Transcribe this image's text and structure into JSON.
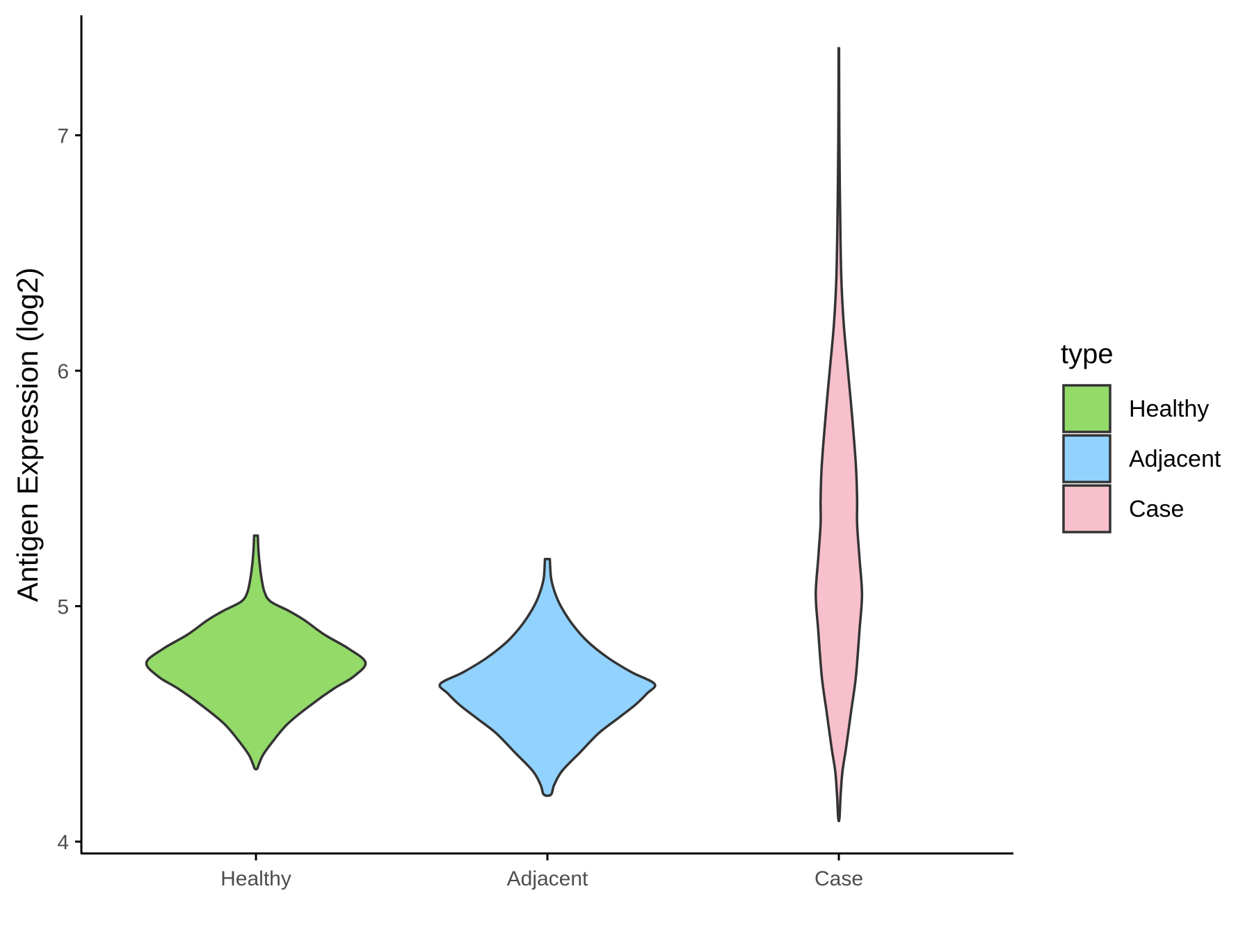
{
  "chart_data": {
    "type": "violin",
    "ylabel": "Antigen Expression (log2)",
    "xlabel": "",
    "ylim": [
      3.95,
      7.55
    ],
    "y_ticks": [
      4,
      5,
      6,
      7
    ],
    "categories": [
      "Healthy",
      "Adjacent",
      "Case"
    ],
    "grid": false,
    "legend": {
      "title": "type",
      "placement": "right",
      "entries": [
        {
          "label": "Healthy",
          "color": "#93DA69"
        },
        {
          "label": "Adjacent",
          "color": "#92D2FF"
        },
        {
          "label": "Case",
          "color": "#F7C0CC"
        }
      ]
    },
    "series": [
      {
        "category": "Healthy",
        "color": "#93DA69",
        "min": 4.31,
        "max": 5.3,
        "density_profile": [
          [
            4.31,
            0.01
          ],
          [
            4.33,
            0.025
          ],
          [
            4.37,
            0.06
          ],
          [
            4.42,
            0.13
          ],
          [
            4.5,
            0.26
          ],
          [
            4.58,
            0.45
          ],
          [
            4.65,
            0.64
          ],
          [
            4.7,
            0.8
          ],
          [
            4.76,
            0.9
          ],
          [
            4.82,
            0.76
          ],
          [
            4.88,
            0.56
          ],
          [
            4.94,
            0.4
          ],
          [
            4.98,
            0.27
          ],
          [
            5.02,
            0.12
          ],
          [
            5.06,
            0.07
          ],
          [
            5.12,
            0.045
          ],
          [
            5.18,
            0.03
          ],
          [
            5.24,
            0.02
          ],
          [
            5.3,
            0.015
          ]
        ]
      },
      {
        "category": "Adjacent",
        "color": "#92D2FF",
        "min": 4.2,
        "max": 5.2,
        "density_profile": [
          [
            4.2,
            0.03
          ],
          [
            4.24,
            0.055
          ],
          [
            4.3,
            0.12
          ],
          [
            4.38,
            0.27
          ],
          [
            4.46,
            0.42
          ],
          [
            4.52,
            0.57
          ],
          [
            4.58,
            0.72
          ],
          [
            4.63,
            0.82
          ],
          [
            4.67,
            0.88
          ],
          [
            4.72,
            0.69
          ],
          [
            4.78,
            0.5
          ],
          [
            4.85,
            0.33
          ],
          [
            4.92,
            0.21
          ],
          [
            5.0,
            0.11
          ],
          [
            5.06,
            0.06
          ],
          [
            5.12,
            0.03
          ],
          [
            5.2,
            0.02
          ]
        ]
      },
      {
        "category": "Case",
        "color": "#F7C0CC",
        "min": 4.1,
        "max": 7.37,
        "density_profile": [
          [
            4.1,
            0.005
          ],
          [
            4.2,
            0.015
          ],
          [
            4.3,
            0.03
          ],
          [
            4.4,
            0.06
          ],
          [
            4.55,
            0.1
          ],
          [
            4.7,
            0.14
          ],
          [
            4.9,
            0.17
          ],
          [
            5.05,
            0.19
          ],
          [
            5.2,
            0.17
          ],
          [
            5.35,
            0.15
          ],
          [
            5.45,
            0.15
          ],
          [
            5.6,
            0.14
          ],
          [
            5.8,
            0.11
          ],
          [
            6.0,
            0.075
          ],
          [
            6.2,
            0.04
          ],
          [
            6.4,
            0.02
          ],
          [
            6.7,
            0.01
          ],
          [
            7.0,
            0.004
          ],
          [
            7.37,
            0.002
          ]
        ]
      }
    ]
  }
}
